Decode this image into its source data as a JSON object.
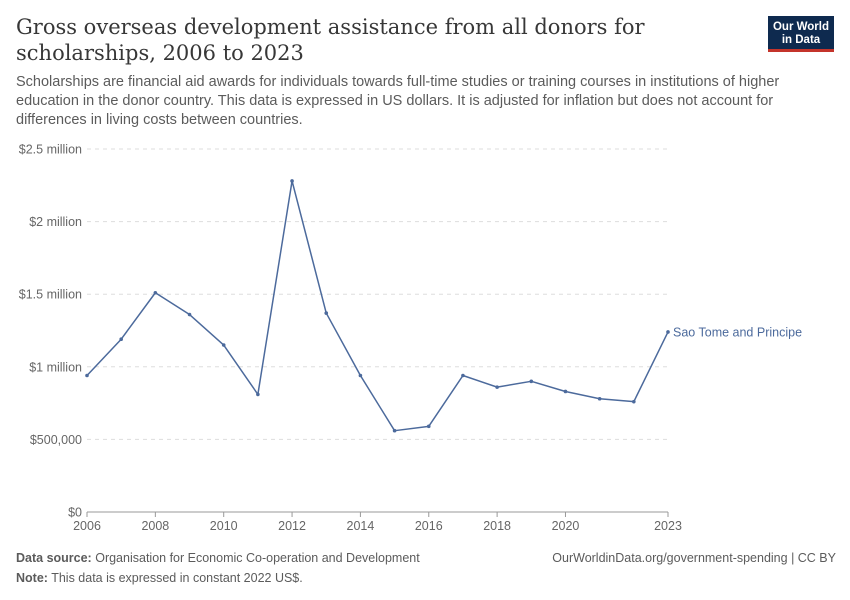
{
  "header": {
    "title": "Gross overseas development assistance from all donors for scholarships, 2006 to 2023",
    "subtitle": "Scholarships are financial aid awards for individuals towards full-time studies or training courses in institutions of higher education in the donor country. This data is expressed in US dollars. It is adjusted for inflation but does not account for differences in living costs between countries."
  },
  "logo": {
    "line1": "Our World",
    "line2": "in Data",
    "bg_color": "#0e2a4f",
    "accent_color": "#c4342b"
  },
  "chart_data": {
    "type": "line",
    "title": "Gross overseas development assistance from all donors for scholarships, 2006 to 2023",
    "x": [
      2006,
      2007,
      2008,
      2009,
      2010,
      2011,
      2012,
      2013,
      2014,
      2015,
      2016,
      2017,
      2018,
      2019,
      2020,
      2021,
      2022,
      2023
    ],
    "series": [
      {
        "name": "Sao Tome and Principe",
        "color": "#4c6a9c",
        "values": [
          940000,
          1190000,
          1510000,
          1360000,
          1150000,
          810000,
          2280000,
          1370000,
          940000,
          560000,
          590000,
          940000,
          860000,
          900000,
          830000,
          780000,
          760000,
          1240000
        ]
      }
    ],
    "xlim": [
      2006,
      2023
    ],
    "ylim": [
      0,
      2500000
    ],
    "x_ticks": [
      {
        "value": 2006,
        "label": "2006"
      },
      {
        "value": 2008,
        "label": "2008"
      },
      {
        "value": 2010,
        "label": "2010"
      },
      {
        "value": 2012,
        "label": "2012"
      },
      {
        "value": 2014,
        "label": "2014"
      },
      {
        "value": 2016,
        "label": "2016"
      },
      {
        "value": 2018,
        "label": "2018"
      },
      {
        "value": 2020,
        "label": "2020"
      },
      {
        "value": 2023,
        "label": "2023"
      }
    ],
    "y_ticks": [
      {
        "value": 0,
        "label": "$0"
      },
      {
        "value": 500000,
        "label": "$500,000"
      },
      {
        "value": 1000000,
        "label": "$1 million"
      },
      {
        "value": 1500000,
        "label": "$1.5 million"
      },
      {
        "value": 2000000,
        "label": "$2 million"
      },
      {
        "value": 2500000,
        "label": "$2.5 million"
      }
    ],
    "grid": "horizontal dashed",
    "legend": "end-of-line label"
  },
  "footer": {
    "source_label": "Data source:",
    "source_text": "Organisation for Economic Co-operation and Development",
    "url_text": "OurWorldinData.org/government-spending | CC BY",
    "note_label": "Note:",
    "note_text": "This data is expressed in constant 2022 US$."
  }
}
